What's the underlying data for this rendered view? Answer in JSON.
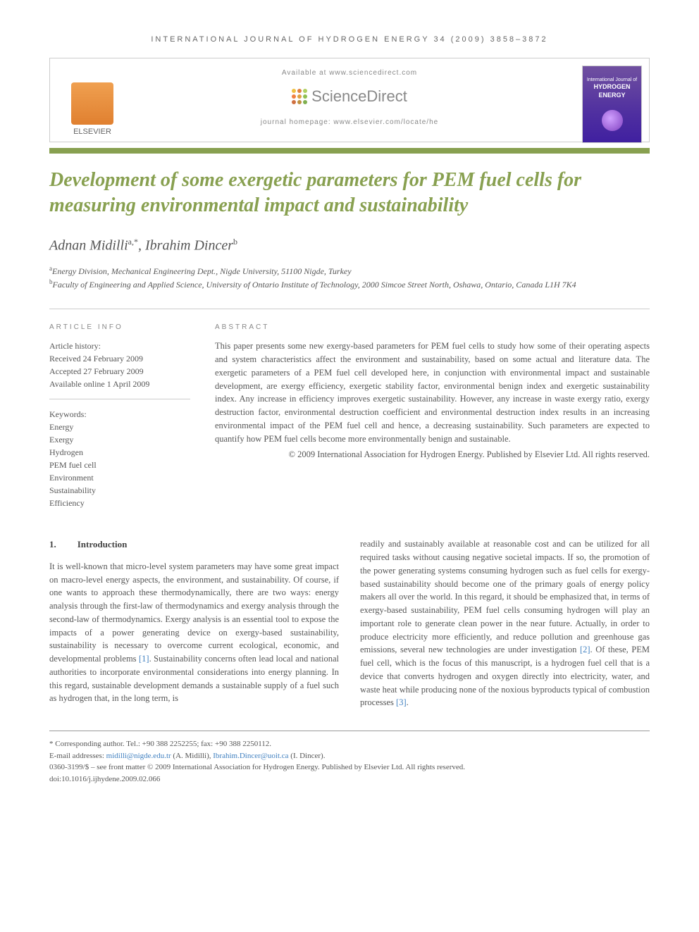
{
  "journal_header": "INTERNATIONAL JOURNAL OF HYDROGEN ENERGY 34 (2009) 3858–3872",
  "available_text": "Available at www.sciencedirect.com",
  "sciencedirect_label": "ScienceDirect",
  "journal_homepage": "journal homepage: www.elsevier.com/locate/he",
  "elsevier_label": "ELSEVIER",
  "cover_title_line1": "International Journal of",
  "cover_title_line2": "HYDROGEN",
  "cover_title_line3": "ENERGY",
  "colors": {
    "accent_green": "#88a050",
    "link_blue": "#4080c0",
    "text_gray": "#555555",
    "border_gray": "#cccccc"
  },
  "sd_dot_colors": [
    "#f0c040",
    "#e08040",
    "#b0d060",
    "#f08040",
    "#e0a040",
    "#90c050",
    "#d07040",
    "#c09040",
    "#80b050"
  ],
  "article": {
    "title": "Development of some exergetic parameters for PEM fuel cells for measuring environmental impact and sustainability",
    "authors": [
      {
        "name": "Adnan Midilli",
        "sup": "a,*"
      },
      {
        "name": "Ibrahim Dincer",
        "sup": "b"
      }
    ],
    "affiliations": [
      {
        "sup": "a",
        "text": "Energy Division, Mechanical Engineering Dept., Nigde University, 51100 Nigde, Turkey"
      },
      {
        "sup": "b",
        "text": "Faculty of Engineering and Applied Science, University of Ontario Institute of Technology, 2000 Simcoe Street North, Oshawa, Ontario, Canada L1H 7K4"
      }
    ]
  },
  "info": {
    "heading": "ARTICLE INFO",
    "history_label": "Article history:",
    "received": "Received 24 February 2009",
    "accepted": "Accepted 27 February 2009",
    "available": "Available online 1 April 2009",
    "keywords_label": "Keywords:",
    "keywords": [
      "Energy",
      "Exergy",
      "Hydrogen",
      "PEM fuel cell",
      "Environment",
      "Sustainability",
      "Efficiency"
    ]
  },
  "abstract": {
    "heading": "ABSTRACT",
    "text": "This paper presents some new exergy-based parameters for PEM fuel cells to study how some of their operating aspects and system characteristics affect the environment and sustainability, based on some actual and literature data. The exergetic parameters of a PEM fuel cell developed here, in conjunction with environmental impact and sustainable development, are exergy efficiency, exergetic stability factor, environmental benign index and exergetic sustainability index. Any increase in efficiency improves exergetic sustainability. However, any increase in waste exergy ratio, exergy destruction factor, environmental destruction coefficient and environmental destruction index results in an increasing environmental impact of the PEM fuel cell and hence, a decreasing sustainability. Such parameters are expected to quantify how PEM fuel cells become more environmentally benign and sustainable.",
    "copyright": "© 2009 International Association for Hydrogen Energy. Published by Elsevier Ltd. All rights reserved."
  },
  "body": {
    "section_number": "1.",
    "section_title": "Introduction",
    "col1_text": "It is well-known that micro-level system parameters may have some great impact on macro-level energy aspects, the environment, and sustainability. Of course, if one wants to approach these thermodynamically, there are two ways: energy analysis through the first-law of thermodynamics and exergy analysis through the second-law of thermodynamics. Exergy analysis is an essential tool to expose the impacts of a power generating device on exergy-based sustainability, sustainability is necessary to overcome current ecological, economic, and developmental problems ",
    "ref1": "[1]",
    "col1_text2": ". Sustainability concerns often lead local and national authorities to incorporate environmental considerations into energy planning. In this regard, sustainable development demands a sustainable supply of a fuel such as hydrogen that, in the long term, is",
    "col2_text": "readily and sustainably available at reasonable cost and can be utilized for all required tasks without causing negative societal impacts. If so, the promotion of the power generating systems consuming hydrogen such as fuel cells for exergy-based sustainability should become one of the primary goals of energy policy makers all over the world. In this regard, it should be emphasized that, in terms of exergy-based sustainability, PEM fuel cells consuming hydrogen will play an important role to generate clean power in the near future. Actually, in order to produce electricity more efficiently, and reduce pollution and greenhouse gas emissions, several new technologies are under investigation ",
    "ref2": "[2]",
    "col2_text2": ". Of these, PEM fuel cell, which is the focus of this manuscript, is a hydrogen fuel cell that is a device that converts hydrogen and oxygen directly into electricity, water, and waste heat while producing none of the noxious byproducts typical of combustion processes ",
    "ref3": "[3]",
    "col2_text3": "."
  },
  "footer": {
    "corresponding": "* Corresponding author. Tel.: +90 388 2252255; fax: +90 388 2250112.",
    "email_label": "E-mail addresses: ",
    "email1": "midilli@nigde.edu.tr",
    "email1_name": " (A. Midilli), ",
    "email2": "Ibrahim.Dincer@uoit.ca",
    "email2_name": " (I. Dincer).",
    "copyright": "0360-3199/$ – see front matter © 2009 International Association for Hydrogen Energy. Published by Elsevier Ltd. All rights reserved.",
    "doi": "doi:10.1016/j.ijhydene.2009.02.066"
  }
}
